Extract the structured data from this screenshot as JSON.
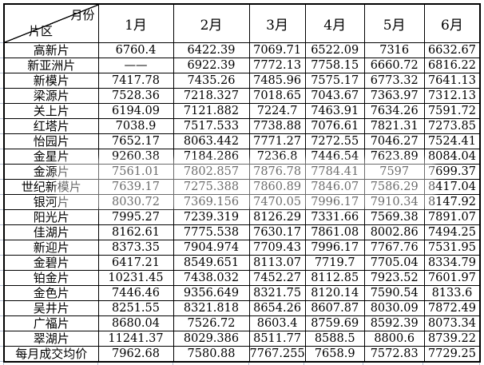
{
  "chart_data": {
    "type": "table",
    "corner_top_right": "月份",
    "corner_bottom_left": "片区",
    "columns": [
      "1月",
      "2月",
      "3月",
      "4月",
      "5月",
      "6月"
    ],
    "rows": [
      {
        "label": "高新片",
        "values": [
          "6760.4",
          "6422.39",
          "7069.71",
          "6522.09",
          "7316",
          "6632.67"
        ]
      },
      {
        "label": "新亚洲片",
        "values": [
          "——",
          "6922.39",
          "7772.13",
          "7758.15",
          "6660.72",
          "6816.22"
        ]
      },
      {
        "label": "新模片",
        "values": [
          "7417.78",
          "7435.26",
          "7485.96",
          "7575.17",
          "6773.32",
          "7641.13"
        ]
      },
      {
        "label": "梁源片",
        "values": [
          "7528.36",
          "7218.327",
          "7018.65",
          "7043.67",
          "7363.97",
          "7312.13"
        ]
      },
      {
        "label": "关上片",
        "values": [
          "6194.09",
          "7121.882",
          "7224.7",
          "7463.91",
          "7634.26",
          "7591.72"
        ]
      },
      {
        "label": "红塔片",
        "values": [
          "7038.9",
          "7517.533",
          "7738.88",
          "7076.61",
          "7821.31",
          "7273.85"
        ]
      },
      {
        "label": "怡园片",
        "values": [
          "7652.17",
          "8063.442",
          "7771.27",
          "7272.55",
          "7046.27",
          "7524.41"
        ]
      },
      {
        "label": "金星片",
        "values": [
          "9260.38",
          "7184.286",
          "7236.8",
          "7446.54",
          "7623.89",
          "8084.04"
        ]
      },
      {
        "label": "金源片",
        "values": [
          "7561.01",
          "7802.857",
          "7876.78",
          "7784.41",
          "7597",
          "7699.37"
        ]
      },
      {
        "label": "世纪新模片",
        "values": [
          "7639.17",
          "7275.388",
          "7860.89",
          "7846.07",
          "7586.29",
          "8417.04"
        ]
      },
      {
        "label": "银河片",
        "values": [
          "8030.72",
          "7369.156",
          "7470.05",
          "7996.17",
          "7910.34",
          "8147.92"
        ]
      },
      {
        "label": "阳光片",
        "values": [
          "7995.27",
          "7239.319",
          "8126.29",
          "7331.66",
          "7569.38",
          "7891.07"
        ]
      },
      {
        "label": "佳湖片",
        "values": [
          "8162.61",
          "7775.538",
          "7630.17",
          "7861.08",
          "8002.86",
          "7494.25"
        ]
      },
      {
        "label": "新迎片",
        "values": [
          "8373.35",
          "7904.974",
          "7709.43",
          "7996.17",
          "7767.76",
          "7531.95"
        ]
      },
      {
        "label": "金碧片",
        "values": [
          "6417.21",
          "8549.651",
          "8113.07",
          "7719.7",
          "7705.04",
          "8334.79"
        ]
      },
      {
        "label": "铂金片",
        "values": [
          "10231.45",
          "7438.032",
          "7452.27",
          "8112.85",
          "7923.52",
          "7601.97"
        ]
      },
      {
        "label": "金色片",
        "values": [
          "7446.46",
          "9356.649",
          "8321.75",
          "8120.14",
          "7590.54",
          "8133.6"
        ]
      },
      {
        "label": "吴井片",
        "values": [
          "8251.55",
          "8321.818",
          "8654.26",
          "8607.87",
          "8030.09",
          "7872.49"
        ]
      },
      {
        "label": "广福片",
        "values": [
          "8680.04",
          "7526.72",
          "8603.4",
          "8759.69",
          "8592.39",
          "8073.34"
        ]
      },
      {
        "label": "翠湖片",
        "values": [
          "11241.37",
          "8029.386",
          "8511.77",
          "8588.5",
          "8800.6",
          "8739.22"
        ]
      },
      {
        "label": "每月成交均价",
        "values": [
          "7962.68",
          "7580.88",
          "7767.255",
          "7658.9",
          "7572.83",
          "7729.25"
        ]
      }
    ],
    "colors": {
      "border": "#000000",
      "text": "#000000",
      "background": "#ffffff",
      "grid_tick": "#b3bfd4"
    }
  }
}
